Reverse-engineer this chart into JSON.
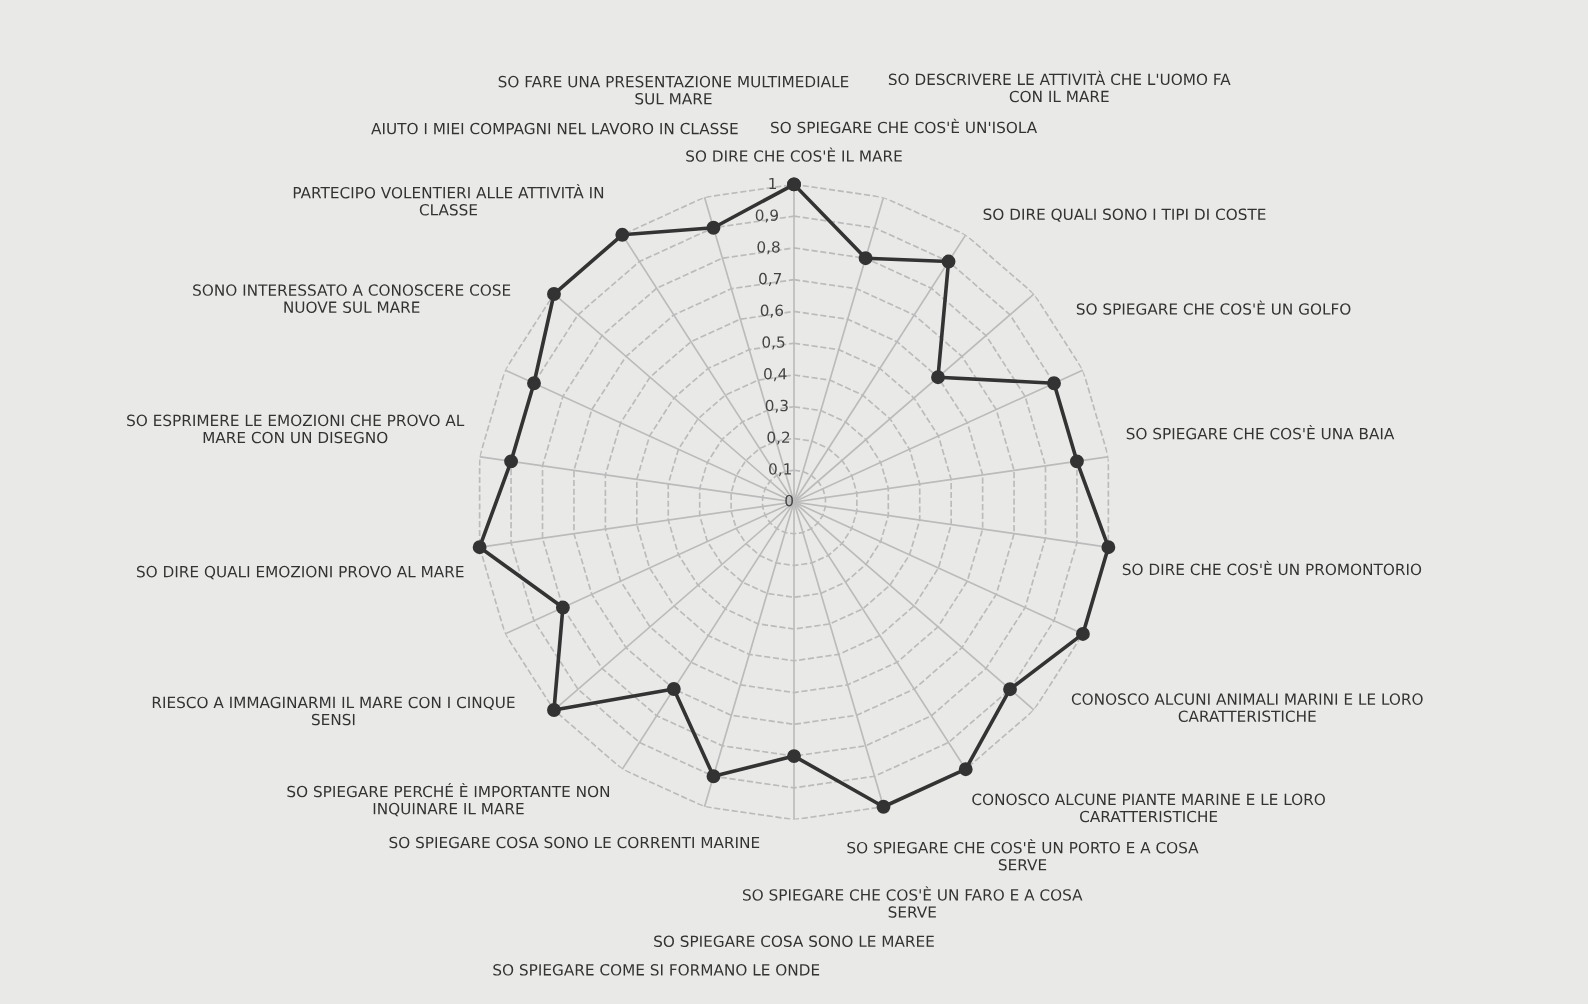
{
  "chart_data": {
    "type": "radar",
    "categories": [
      "SO DIRE CHE COS'È IL MARE",
      "SO SPIEGARE CHE COS'È UN'ISOLA",
      "SO DESCRIVERE LE ATTIVITÀ CHE L'UOMO FA\nCON IL MARE",
      "SO DIRE QUALI SONO I TIPI DI COSTE",
      "SO SPIEGARE CHE COS'È UN GOLFO",
      "SO SPIEGARE CHE COS'È UNA BAIA",
      "SO DIRE CHE COS'È UN PROMONTORIO",
      "CONOSCO ALCUNI ANIMALI MARINI E LE LORO\nCARATTERISTICHE",
      "CONOSCO ALCUNE PIANTE MARINE E LE LORO\nCARATTERISTICHE",
      "SO SPIEGARE CHE COS'È UN PORTO E A COSA\nSERVE",
      "SO SPIEGARE CHE COS'È UN FARO E A COSA\nSERVE",
      "SO SPIEGARE COSA SONO LE MAREE",
      "SO SPIEGARE COME SI FORMANO LE ONDE",
      "SO SPIEGARE COSA SONO LE CORRENTI MARINE",
      "SO SPIEGARE PERCHÉ È IMPORTANTE NON\nINQUINARE IL MARE",
      "RIESCO A IMMAGINARMI IL MARE CON I CINQUE\nSENSI",
      "SO DIRE QUALI EMOZIONI PROVO AL MARE",
      "SO ESPRIMERE LE EMOZIONI CHE PROVO AL\nMARE CON UN DISEGNO",
      "SONO INTERESSATO A CONOSCERE COSE\nNUOVE SUL MARE",
      "PARTECIPO VOLENTIERI ALLE ATTIVITÀ IN\nCLASSE",
      "AIUTO I MIEI COMPAGNI NEL LAVORO IN CLASSE",
      "SO FARE UNA PRESENTAZIONE MULTIMEDIALE\nSUL MARE"
    ],
    "series": [
      {
        "color": "#333333",
        "values": [
          1.0,
          0.8,
          0.9,
          0.6,
          0.9,
          0.9,
          1.0,
          1.0,
          0.9,
          1.0,
          1.0,
          0.8,
          0.9,
          0.7,
          1.0,
          0.8,
          1.0,
          0.9,
          0.9,
          1.0,
          1.0,
          0.9
        ]
      }
    ],
    "ylim": [
      0,
      1
    ],
    "yticks": [
      0,
      {
        "value": 0.1,
        "label": "0,1"
      },
      {
        "value": 0.2,
        "label": "0,2"
      },
      {
        "value": 0.3,
        "label": "0,3"
      },
      {
        "value": 0.4,
        "label": "0,4"
      },
      {
        "value": 0.5,
        "label": "0,5"
      },
      {
        "value": 0.6,
        "label": "0,6"
      },
      {
        "value": 0.7,
        "label": "0,7"
      },
      {
        "value": 0.8,
        "label": "0,8"
      },
      {
        "value": 0.9,
        "label": "0,9"
      },
      1
    ],
    "grid": true,
    "marker": "circle",
    "line_style": "solid"
  }
}
